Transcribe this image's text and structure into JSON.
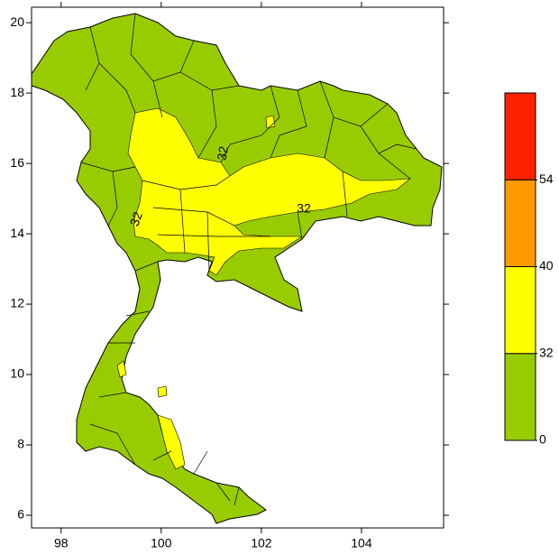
{
  "chart_data": {
    "type": "map",
    "xlim": [
      97.41,
      105.64
    ],
    "ylim": [
      5.64,
      20.44
    ],
    "xticks": [
      98,
      100,
      102,
      104
    ],
    "yticks": [
      6,
      8,
      10,
      12,
      14,
      16,
      18,
      20
    ],
    "colorbar": {
      "levels": [
        0,
        32,
        40,
        54
      ],
      "colors": [
        "#99cc00",
        "#ffff00",
        "#ff9900",
        "#ff2200"
      ]
    },
    "contour_labels": [
      32,
      32,
      32
    ]
  }
}
